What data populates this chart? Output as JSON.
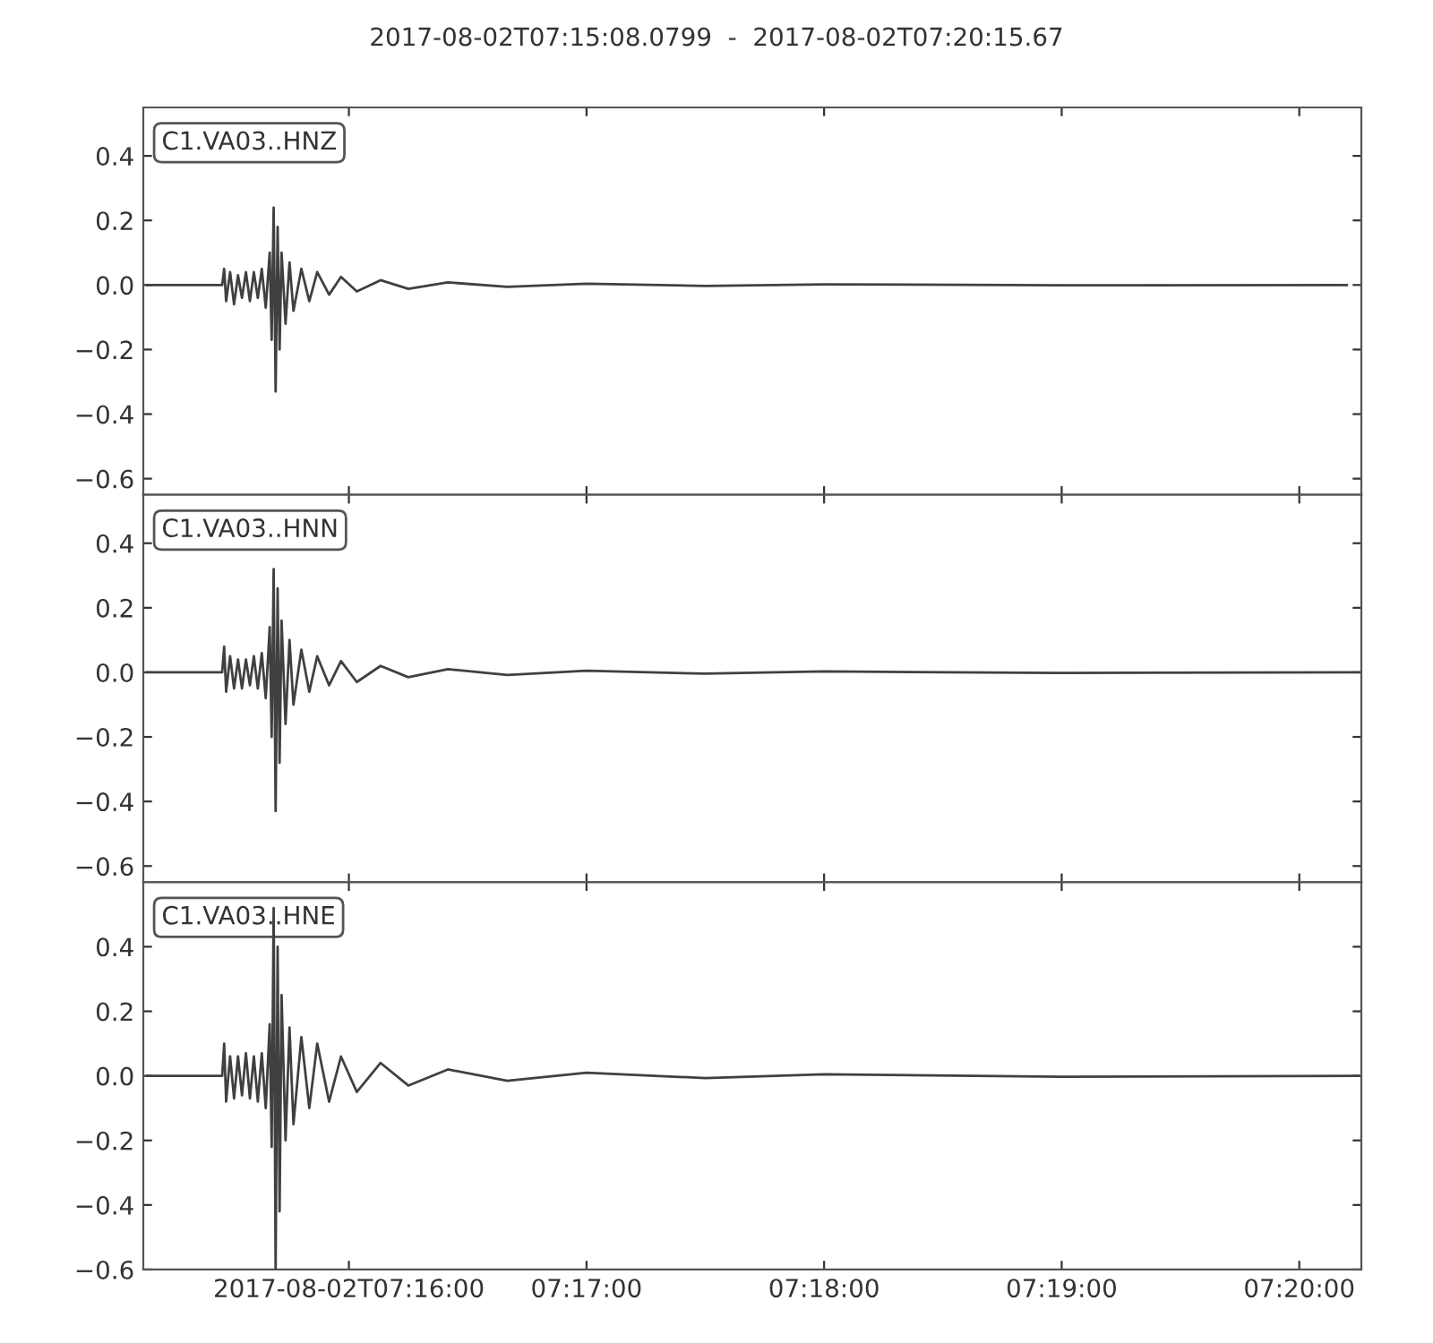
{
  "chart_data": [
    {
      "type": "line",
      "title": "2017-08-02T07:15:08.0799  -  2017-08-02T07:20:15.67",
      "annotations": [
        "C1.VA03..HNZ"
      ],
      "tick_labels": "y",
      "grid": false,
      "series": [
        {
          "color": "#404040",
          "x": [
            "2017-08-02T07:15:09",
            "2017-08-02T07:15:28",
            "2017-08-02T07:15:28.5",
            "2017-08-02T07:15:29",
            "2017-08-02T07:15:30",
            "2017-08-02T07:15:31",
            "2017-08-02T07:15:32",
            "2017-08-02T07:15:33",
            "2017-08-02T07:15:34",
            "2017-08-02T07:15:35",
            "2017-08-02T07:15:36",
            "2017-08-02T07:15:37",
            "2017-08-02T07:15:38",
            "2017-08-02T07:15:39",
            "2017-08-02T07:15:40",
            "2017-08-02T07:15:40.5",
            "2017-08-02T07:15:41",
            "2017-08-02T07:15:41.5",
            "2017-08-02T07:15:42",
            "2017-08-02T07:15:42.5",
            "2017-08-02T07:15:43",
            "2017-08-02T07:15:44",
            "2017-08-02T07:15:45",
            "2017-08-02T07:15:46",
            "2017-08-02T07:15:48",
            "2017-08-02T07:15:50",
            "2017-08-02T07:15:52",
            "2017-08-02T07:15:55",
            "2017-08-02T07:15:58",
            "2017-08-02T07:16:02",
            "2017-08-02T07:16:08",
            "2017-08-02T07:16:15",
            "2017-08-02T07:16:25",
            "2017-08-02T07:16:40",
            "2017-08-02T07:17:00",
            "2017-08-02T07:17:30",
            "2017-08-02T07:18:00",
            "2017-08-02T07:19:00",
            "2017-08-02T07:20:12"
          ],
          "values": [
            0,
            0,
            0.05,
            -0.05,
            0.04,
            -0.06,
            0.03,
            -0.04,
            0.04,
            -0.05,
            0.04,
            -0.04,
            0.05,
            -0.07,
            0.1,
            -0.17,
            0.24,
            -0.33,
            0.18,
            -0.2,
            0.1,
            -0.12,
            0.07,
            -0.08,
            0.05,
            -0.05,
            0.04,
            -0.03,
            0.025,
            -0.02,
            0.015,
            -0.012,
            0.008,
            -0.006,
            0.004,
            -0.003,
            0.002,
            -0.001,
            0
          ]
        }
      ],
      "xlim": [
        "2017-08-02T07:15:08.0799",
        "2017-08-02T07:20:15.67"
      ],
      "xticks": [
        {
          "value": "2017-08-02T07:16:00",
          "label": null
        },
        {
          "value": "2017-08-02T07:17:00",
          "label": null
        },
        {
          "value": "2017-08-02T07:18:00",
          "label": null
        },
        {
          "value": "2017-08-02T07:19:00",
          "label": null
        },
        {
          "value": "2017-08-02T07:20:00",
          "label": null
        }
      ],
      "ylim": [
        -0.65,
        0.55
      ],
      "yticks": [
        {
          "value": -0.6,
          "label": "−0.6"
        },
        {
          "value": -0.4,
          "label": "−0.4"
        },
        {
          "value": -0.2,
          "label": "−0.2"
        },
        {
          "value": 0,
          "label": "0.0"
        },
        {
          "value": 0.2,
          "label": "0.2"
        },
        {
          "value": 0.4,
          "label": "0.4"
        }
      ]
    },
    {
      "type": "line",
      "annotations": [
        "C1.VA03..HNN"
      ],
      "tick_labels": "y",
      "grid": false,
      "series": [
        {
          "color": "#404040",
          "x": [
            "2017-08-02T07:15:09",
            "2017-08-02T07:15:28",
            "2017-08-02T07:15:28.5",
            "2017-08-02T07:15:29",
            "2017-08-02T07:15:30",
            "2017-08-02T07:15:31",
            "2017-08-02T07:15:32",
            "2017-08-02T07:15:33",
            "2017-08-02T07:15:34",
            "2017-08-02T07:15:35",
            "2017-08-02T07:15:36",
            "2017-08-02T07:15:37",
            "2017-08-02T07:15:38",
            "2017-08-02T07:15:39",
            "2017-08-02T07:15:40",
            "2017-08-02T07:15:40.5",
            "2017-08-02T07:15:41",
            "2017-08-02T07:15:41.5",
            "2017-08-02T07:15:42",
            "2017-08-02T07:15:42.5",
            "2017-08-02T07:15:43",
            "2017-08-02T07:15:44",
            "2017-08-02T07:15:45",
            "2017-08-02T07:15:46",
            "2017-08-02T07:15:48",
            "2017-08-02T07:15:50",
            "2017-08-02T07:15:52",
            "2017-08-02T07:15:55",
            "2017-08-02T07:15:58",
            "2017-08-02T07:16:02",
            "2017-08-02T07:16:08",
            "2017-08-02T07:16:15",
            "2017-08-02T07:16:25",
            "2017-08-02T07:16:40",
            "2017-08-02T07:17:00",
            "2017-08-02T07:17:30",
            "2017-08-02T07:18:00",
            "2017-08-02T07:19:00",
            "2017-08-02T07:20:15"
          ],
          "values": [
            0,
            0,
            0.08,
            -0.06,
            0.05,
            -0.05,
            0.04,
            -0.05,
            0.04,
            -0.04,
            0.05,
            -0.05,
            0.06,
            -0.08,
            0.14,
            -0.2,
            0.32,
            -0.43,
            0.26,
            -0.28,
            0.16,
            -0.16,
            0.1,
            -0.1,
            0.07,
            -0.06,
            0.05,
            -0.04,
            0.035,
            -0.03,
            0.02,
            -0.015,
            0.01,
            -0.008,
            0.005,
            -0.004,
            0.003,
            -0.002,
            0
          ]
        }
      ],
      "xlim": [
        "2017-08-02T07:15:08.0799",
        "2017-08-02T07:20:15.67"
      ],
      "xticks": [
        {
          "value": "2017-08-02T07:16:00",
          "label": null
        },
        {
          "value": "2017-08-02T07:17:00",
          "label": null
        },
        {
          "value": "2017-08-02T07:18:00",
          "label": null
        },
        {
          "value": "2017-08-02T07:19:00",
          "label": null
        },
        {
          "value": "2017-08-02T07:20:00",
          "label": null
        }
      ],
      "ylim": [
        -0.65,
        0.55
      ],
      "yticks": [
        {
          "value": -0.6,
          "label": "−0.6"
        },
        {
          "value": -0.4,
          "label": "−0.4"
        },
        {
          "value": -0.2,
          "label": "−0.2"
        },
        {
          "value": 0,
          "label": "0.0"
        },
        {
          "value": 0.2,
          "label": "0.2"
        },
        {
          "value": 0.4,
          "label": "0.4"
        }
      ]
    },
    {
      "type": "line",
      "annotations": [
        "C1.VA03..HNE"
      ],
      "grid": false,
      "series": [
        {
          "color": "#404040",
          "x": [
            "2017-08-02T07:15:09",
            "2017-08-02T07:15:28",
            "2017-08-02T07:15:28.5",
            "2017-08-02T07:15:29",
            "2017-08-02T07:15:30",
            "2017-08-02T07:15:31",
            "2017-08-02T07:15:32",
            "2017-08-02T07:15:33",
            "2017-08-02T07:15:34",
            "2017-08-02T07:15:35",
            "2017-08-02T07:15:36",
            "2017-08-02T07:15:37",
            "2017-08-02T07:15:38",
            "2017-08-02T07:15:39",
            "2017-08-02T07:15:40",
            "2017-08-02T07:15:40.5",
            "2017-08-02T07:15:41",
            "2017-08-02T07:15:41.5",
            "2017-08-02T07:15:42",
            "2017-08-02T07:15:42.5",
            "2017-08-02T07:15:43",
            "2017-08-02T07:15:44",
            "2017-08-02T07:15:45",
            "2017-08-02T07:15:46",
            "2017-08-02T07:15:48",
            "2017-08-02T07:15:50",
            "2017-08-02T07:15:52",
            "2017-08-02T07:15:55",
            "2017-08-02T07:15:58",
            "2017-08-02T07:16:02",
            "2017-08-02T07:16:08",
            "2017-08-02T07:16:15",
            "2017-08-02T07:16:25",
            "2017-08-02T07:16:40",
            "2017-08-02T07:17:00",
            "2017-08-02T07:17:30",
            "2017-08-02T07:18:00",
            "2017-08-02T07:19:00",
            "2017-08-02T07:20:15"
          ],
          "values": [
            0,
            0,
            0.1,
            -0.08,
            0.06,
            -0.07,
            0.06,
            -0.06,
            0.07,
            -0.07,
            0.06,
            -0.08,
            0.07,
            -0.1,
            0.16,
            -0.22,
            0.52,
            -0.6,
            0.4,
            -0.42,
            0.25,
            -0.2,
            0.15,
            -0.15,
            0.12,
            -0.1,
            0.1,
            -0.08,
            0.06,
            -0.05,
            0.04,
            -0.03,
            0.02,
            -0.015,
            0.01,
            -0.007,
            0.005,
            -0.003,
            0
          ]
        }
      ],
      "xlim": [
        "2017-08-02T07:15:08.0799",
        "2017-08-02T07:20:15.67"
      ],
      "xticks": [
        {
          "value": "2017-08-02T07:16:00",
          "label": "2017-08-02T07:16:00"
        },
        {
          "value": "2017-08-02T07:17:00",
          "label": "07:17:00"
        },
        {
          "value": "2017-08-02T07:18:00",
          "label": "07:18:00"
        },
        {
          "value": "2017-08-02T07:19:00",
          "label": "07:19:00"
        },
        {
          "value": "2017-08-02T07:20:00",
          "label": "07:20:00"
        }
      ],
      "ylim": [
        -0.6,
        0.6
      ],
      "yticks": [
        {
          "value": -0.6,
          "label": "−0.6"
        },
        {
          "value": -0.4,
          "label": "−0.4"
        },
        {
          "value": -0.2,
          "label": "−0.2"
        },
        {
          "value": 0,
          "label": "0.0"
        },
        {
          "value": 0.2,
          "label": "0.2"
        },
        {
          "value": 0.4,
          "label": "0.4"
        }
      ]
    }
  ]
}
